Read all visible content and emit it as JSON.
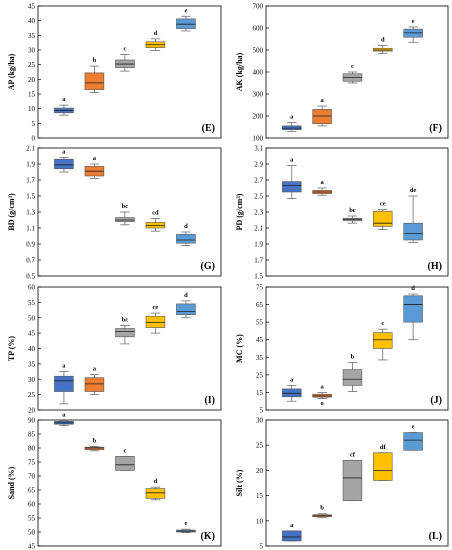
{
  "colors": {
    "blue": "#4472C4",
    "orange": "#ED7D31",
    "gray": "#A5A5A5",
    "yellow": "#FFC000",
    "lightblue": "#5B9BD5",
    "frame": "#000000",
    "whisker": "#707070",
    "median": "#222222"
  },
  "chart_data": [
    {
      "id": "E",
      "type": "boxplot",
      "label": "(E)",
      "ylabel": "AP (kg/ha)",
      "ylim": [
        0,
        45
      ],
      "yticks": [
        0,
        5,
        10,
        15,
        20,
        25,
        30,
        35,
        40,
        45
      ],
      "boxes": [
        {
          "color": "blue",
          "min": 7.8,
          "q1": 8.6,
          "median": 9.4,
          "q3": 10.2,
          "max": 11.2,
          "letter": "a"
        },
        {
          "color": "orange",
          "min": 15.5,
          "q1": 16.5,
          "median": 18.8,
          "q3": 22.2,
          "max": 24.5,
          "letter": "b"
        },
        {
          "color": "gray",
          "min": 22.8,
          "q1": 24.0,
          "median": 25.2,
          "q3": 26.6,
          "max": 28.5,
          "letter": "c"
        },
        {
          "color": "yellow",
          "min": 29.8,
          "q1": 30.8,
          "median": 31.8,
          "q3": 32.8,
          "max": 33.8,
          "letter": "d"
        },
        {
          "color": "lightblue",
          "min": 36.5,
          "q1": 37.3,
          "median": 38.8,
          "q3": 40.6,
          "max": 41.5,
          "letter": "e"
        }
      ]
    },
    {
      "id": "F",
      "type": "boxplot",
      "label": "(F)",
      "ylabel": "AK (kg/ha)",
      "ylim": [
        100,
        700
      ],
      "yticks": [
        100,
        200,
        300,
        400,
        500,
        600,
        700
      ],
      "boxes": [
        {
          "color": "blue",
          "min": 130,
          "q1": 138,
          "median": 145,
          "q3": 155,
          "max": 170,
          "letter": "a"
        },
        {
          "color": "orange",
          "min": 155,
          "q1": 165,
          "median": 200,
          "q3": 230,
          "max": 245,
          "letter": "a"
        },
        {
          "color": "gray",
          "min": 350,
          "q1": 358,
          "median": 375,
          "q3": 392,
          "max": 400,
          "letter": "c"
        },
        {
          "color": "yellow",
          "min": 485,
          "q1": 495,
          "median": 500,
          "q3": 508,
          "max": 520,
          "letter": "d"
        },
        {
          "color": "lightblue",
          "min": 535,
          "q1": 558,
          "median": 578,
          "q3": 595,
          "max": 605,
          "letter": "e"
        }
      ]
    },
    {
      "id": "G",
      "type": "boxplot",
      "label": "(G)",
      "ylabel": "BD (g/cm³)",
      "ylim": [
        0.5,
        2.1
      ],
      "yticks": [
        0.5,
        0.7,
        0.9,
        1.1,
        1.3,
        1.5,
        1.7,
        1.9,
        2.1
      ],
      "boxes": [
        {
          "color": "blue",
          "min": 1.8,
          "q1": 1.84,
          "median": 1.89,
          "q3": 1.96,
          "max": 1.98,
          "letter": "a"
        },
        {
          "color": "orange",
          "min": 1.72,
          "q1": 1.75,
          "median": 1.81,
          "q3": 1.87,
          "max": 1.9,
          "letter": "a"
        },
        {
          "color": "gray",
          "min": 1.14,
          "q1": 1.18,
          "median": 1.2,
          "q3": 1.23,
          "max": 1.3,
          "letter": "bc"
        },
        {
          "color": "yellow",
          "min": 1.06,
          "q1": 1.1,
          "median": 1.13,
          "q3": 1.17,
          "max": 1.22,
          "letter": "cd"
        },
        {
          "color": "lightblue",
          "min": 0.88,
          "q1": 0.91,
          "median": 0.95,
          "q3": 1.02,
          "max": 1.05,
          "letter": "d"
        }
      ]
    },
    {
      "id": "H",
      "type": "boxplot",
      "label": "(H)",
      "ylabel": "PD (g/cm³)",
      "ylim": [
        1.5,
        3.1
      ],
      "yticks": [
        1.5,
        1.7,
        1.9,
        2.1,
        2.3,
        2.5,
        2.7,
        2.9,
        3.1
      ],
      "boxes": [
        {
          "color": "blue",
          "min": 2.47,
          "q1": 2.55,
          "median": 2.63,
          "q3": 2.68,
          "max": 2.88,
          "letter": "a"
        },
        {
          "color": "orange",
          "min": 2.51,
          "q1": 2.53,
          "median": 2.55,
          "q3": 2.57,
          "max": 2.6,
          "letter": "a"
        },
        {
          "color": "gray",
          "min": 2.16,
          "q1": 2.19,
          "median": 2.21,
          "q3": 2.22,
          "max": 2.25,
          "letter": "bc"
        },
        {
          "color": "yellow",
          "min": 2.08,
          "q1": 2.12,
          "median": 2.16,
          "q3": 2.31,
          "max": 2.33,
          "letter": "ce"
        },
        {
          "color": "lightblue",
          "min": 1.92,
          "q1": 1.95,
          "median": 2.03,
          "q3": 2.16,
          "max": 2.5,
          "letter": "de"
        }
      ]
    },
    {
      "id": "I",
      "type": "boxplot",
      "label": "(I)",
      "ylabel": "TP (%)",
      "ylim": [
        20,
        60
      ],
      "yticks": [
        20,
        25,
        30,
        35,
        40,
        45,
        50,
        55,
        60
      ],
      "boxes": [
        {
          "color": "blue",
          "min": 22.0,
          "q1": 26.0,
          "median": 29.5,
          "q3": 31.0,
          "max": 32.5,
          "letter": "a"
        },
        {
          "color": "orange",
          "min": 25.0,
          "q1": 26.0,
          "median": 28.5,
          "q3": 30.5,
          "max": 31.5,
          "letter": "a"
        },
        {
          "color": "gray",
          "min": 41.5,
          "q1": 43.8,
          "median": 45.5,
          "q3": 46.5,
          "max": 47.5,
          "letter": "bc"
        },
        {
          "color": "yellow",
          "min": 45.0,
          "q1": 46.8,
          "median": 48.5,
          "q3": 50.5,
          "max": 51.5,
          "letter": "ce"
        },
        {
          "color": "lightblue",
          "min": 50.0,
          "q1": 51.0,
          "median": 52.0,
          "q3": 54.5,
          "max": 55.5,
          "letter": "d"
        }
      ]
    },
    {
      "id": "J",
      "type": "boxplot",
      "label": "(J)",
      "ylabel": "MC (%)",
      "ylim": [
        5,
        75
      ],
      "yticks": [
        5,
        15,
        25,
        35,
        45,
        55,
        65,
        75
      ],
      "boxes": [
        {
          "color": "blue",
          "min": 10.0,
          "q1": 12.5,
          "median": 14.5,
          "q3": 17.0,
          "max": 19.0,
          "letter": "a"
        },
        {
          "color": "orange",
          "min": 11.5,
          "q1": 12.3,
          "median": 13.0,
          "q3": 14.0,
          "max": 15.0,
          "letter": "a"
        },
        {
          "color": "gray",
          "min": 15.5,
          "q1": 19.0,
          "median": 22.5,
          "q3": 28.0,
          "max": 32.0,
          "letter": "b"
        },
        {
          "color": "yellow",
          "min": 33.5,
          "q1": 40.0,
          "median": 45.0,
          "q3": 49.0,
          "max": 51.0,
          "letter": "c"
        },
        {
          "color": "lightblue",
          "min": 45.0,
          "q1": 55.0,
          "median": 65.0,
          "q3": 70.0,
          "max": 71.0,
          "letter": "d"
        }
      ],
      "extra_labels": [
        {
          "text": "o",
          "box": 1,
          "value": 9.0
        }
      ]
    },
    {
      "id": "K",
      "type": "boxplot",
      "label": "(K)",
      "ylabel": "Sand (%)",
      "ylim": [
        45,
        90
      ],
      "yticks": [
        45,
        50,
        55,
        60,
        65,
        70,
        75,
        80,
        85,
        90
      ],
      "boxes": [
        {
          "color": "blue",
          "min": 88.0,
          "q1": 88.5,
          "median": 89.0,
          "q3": 89.5,
          "max": 89.8,
          "letter": "a"
        },
        {
          "color": "orange",
          "min": 79.0,
          "q1": 79.4,
          "median": 80.0,
          "q3": 80.3,
          "max": 80.6,
          "letter": "b"
        },
        {
          "color": "gray",
          "min": 72.0,
          "q1": 72.0,
          "median": 74.0,
          "q3": 77.0,
          "max": 77.0,
          "letter": "c"
        },
        {
          "color": "yellow",
          "min": 61.5,
          "q1": 62.0,
          "median": 64.0,
          "q3": 65.5,
          "max": 66.0,
          "letter": "d"
        },
        {
          "color": "lightblue",
          "min": 49.8,
          "q1": 50.0,
          "median": 50.3,
          "q3": 50.7,
          "max": 51.0,
          "letter": "e"
        }
      ]
    },
    {
      "id": "L",
      "type": "boxplot",
      "label": "(L)",
      "ylabel": "Silt (%)",
      "ylim": [
        5,
        30
      ],
      "yticks": [
        5,
        10,
        15,
        20,
        25,
        30
      ],
      "boxes": [
        {
          "color": "blue",
          "min": 6.0,
          "q1": 6.0,
          "median": 6.8,
          "q3": 8.0,
          "max": 8.0,
          "letter": "a"
        },
        {
          "color": "orange",
          "min": 10.6,
          "q1": 10.8,
          "median": 11.0,
          "q3": 11.2,
          "max": 11.4,
          "letter": "b"
        },
        {
          "color": "gray",
          "min": 14.0,
          "q1": 14.0,
          "median": 18.5,
          "q3": 22.0,
          "max": 22.0,
          "letter": "cf"
        },
        {
          "color": "yellow",
          "min": 18.0,
          "q1": 18.0,
          "median": 20.0,
          "q3": 23.5,
          "max": 23.5,
          "letter": "df"
        },
        {
          "color": "lightblue",
          "min": 24.0,
          "q1": 24.0,
          "median": 26.0,
          "q3": 27.5,
          "max": 27.5,
          "letter": "e"
        }
      ]
    }
  ]
}
